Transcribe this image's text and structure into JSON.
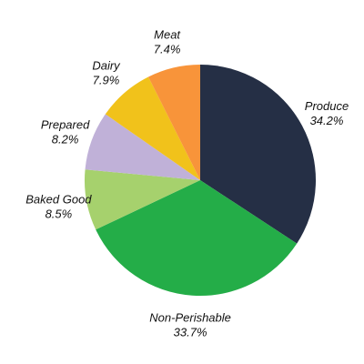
{
  "chart_data": {
    "type": "pie",
    "start_angle_deg": 90,
    "direction": "clockwise",
    "slices": [
      {
        "label": "Produce",
        "value": 34.2,
        "display": "34.2%",
        "color": "#252f45"
      },
      {
        "label": "Non-Perishable",
        "value": 33.7,
        "display": "33.7%",
        "color": "#24ad48"
      },
      {
        "label": "Baked Good",
        "value": 8.5,
        "display": "8.5%",
        "color": "#a6d16d"
      },
      {
        "label": "Prepared",
        "value": 8.2,
        "display": "8.2%",
        "color": "#c0b1d8"
      },
      {
        "label": "Dairy",
        "value": 7.9,
        "display": "7.9%",
        "color": "#f1c21b"
      },
      {
        "label": "Meat",
        "value": 7.4,
        "display": "7.4%",
        "color": "#f8943a"
      }
    ]
  }
}
